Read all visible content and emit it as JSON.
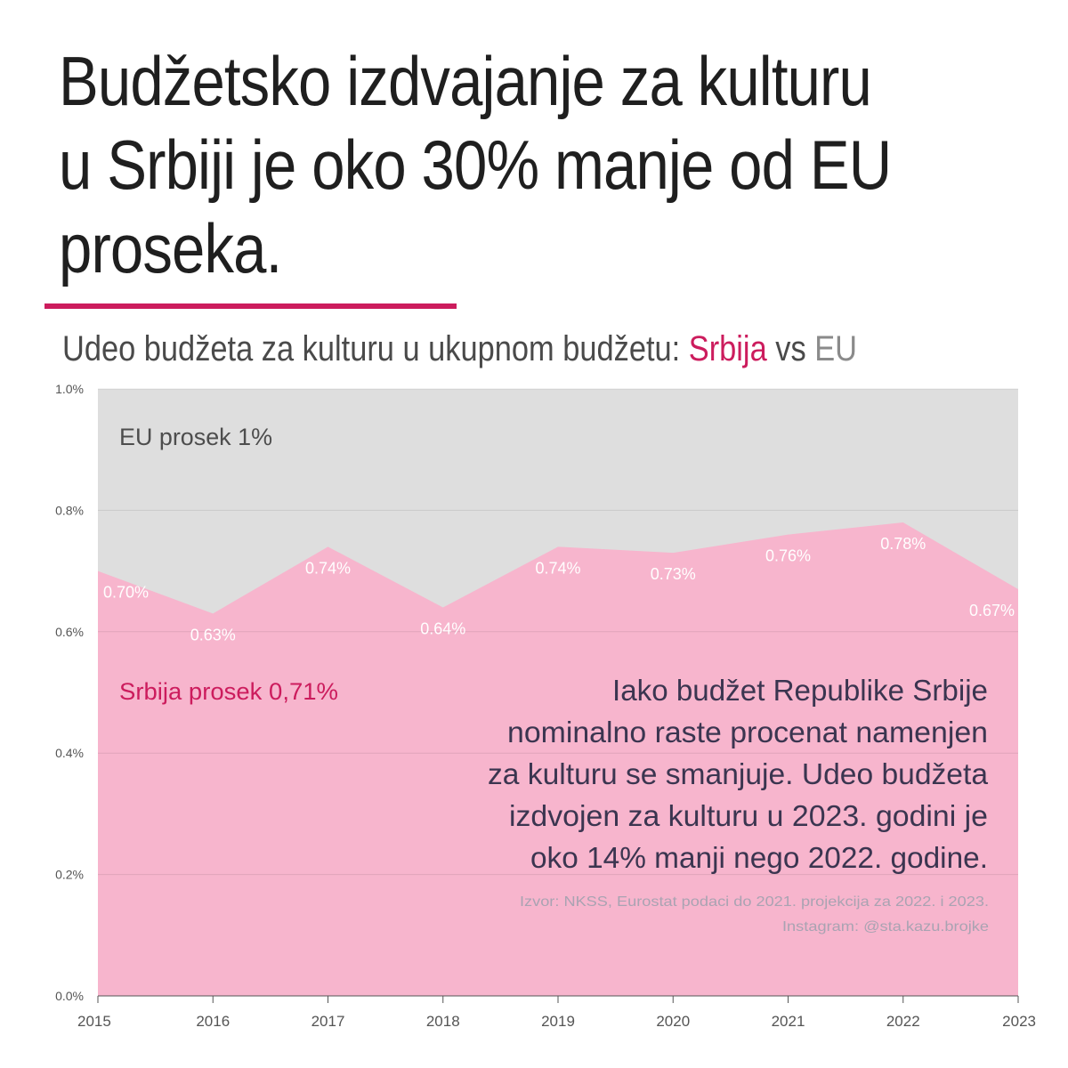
{
  "headline": "Budžetsko izdvajanje za kulturu u Srbiji je oko 30% manje od EU proseka.",
  "subtitle": {
    "prefix": "Udeo budžeta za kulturu u ukupnom budžetu: ",
    "serbia": "Srbija",
    "middle": " vs ",
    "eu": "EU"
  },
  "colors": {
    "accent": "#cc1c5d",
    "serbia_fill": "#f7b5cd",
    "eu_fill": "#dedede",
    "annotation_text": "#3b3550",
    "source_text": "#a9a3b2",
    "label_white": "#ffffff"
  },
  "chart_data": {
    "type": "area",
    "x": [
      "2015",
      "2016",
      "2017",
      "2018",
      "2019",
      "2020",
      "2021",
      "2022",
      "2023"
    ],
    "series": [
      {
        "name": "Srbija",
        "values": [
          0.7,
          0.63,
          0.74,
          0.64,
          0.74,
          0.73,
          0.76,
          0.78,
          0.67
        ],
        "data_labels": [
          "0.70%",
          "0.63%",
          "0.74%",
          "0.64%",
          "0.74%",
          "0.73%",
          "0.76%",
          "0.78%",
          "0.67%"
        ]
      },
      {
        "name": "EU",
        "values": [
          1.0,
          1.0,
          1.0,
          1.0,
          1.0,
          1.0,
          1.0,
          1.0,
          1.0
        ]
      }
    ],
    "ylim": [
      0,
      1.0
    ],
    "yticks": [
      0,
      0.2,
      0.4,
      0.6,
      0.8,
      1.0
    ],
    "ytick_labels": [
      "0.0%",
      "0.2%",
      "0.4%",
      "0.6%",
      "0.8%",
      "1.0%"
    ],
    "grid": true,
    "annotations": {
      "eu_average": "EU prosek 1%",
      "serbia_average": "Srbija prosek 0,71%",
      "note_lines": [
        "Iako budžet Republike Srbije",
        "nominalno raste procenat namenjen",
        "za kulturu se smanjuje. Udeo budžeta",
        "izdvojen za kulturu u 2023. godini je",
        "oko 14% manji nego 2022. godine."
      ],
      "source_lines": [
        "Izvor: NKSS, Eurostat podaci do 2021. projekcija za 2022. i 2023.",
        "Instagram: @sta.kazu.brojke"
      ]
    }
  }
}
